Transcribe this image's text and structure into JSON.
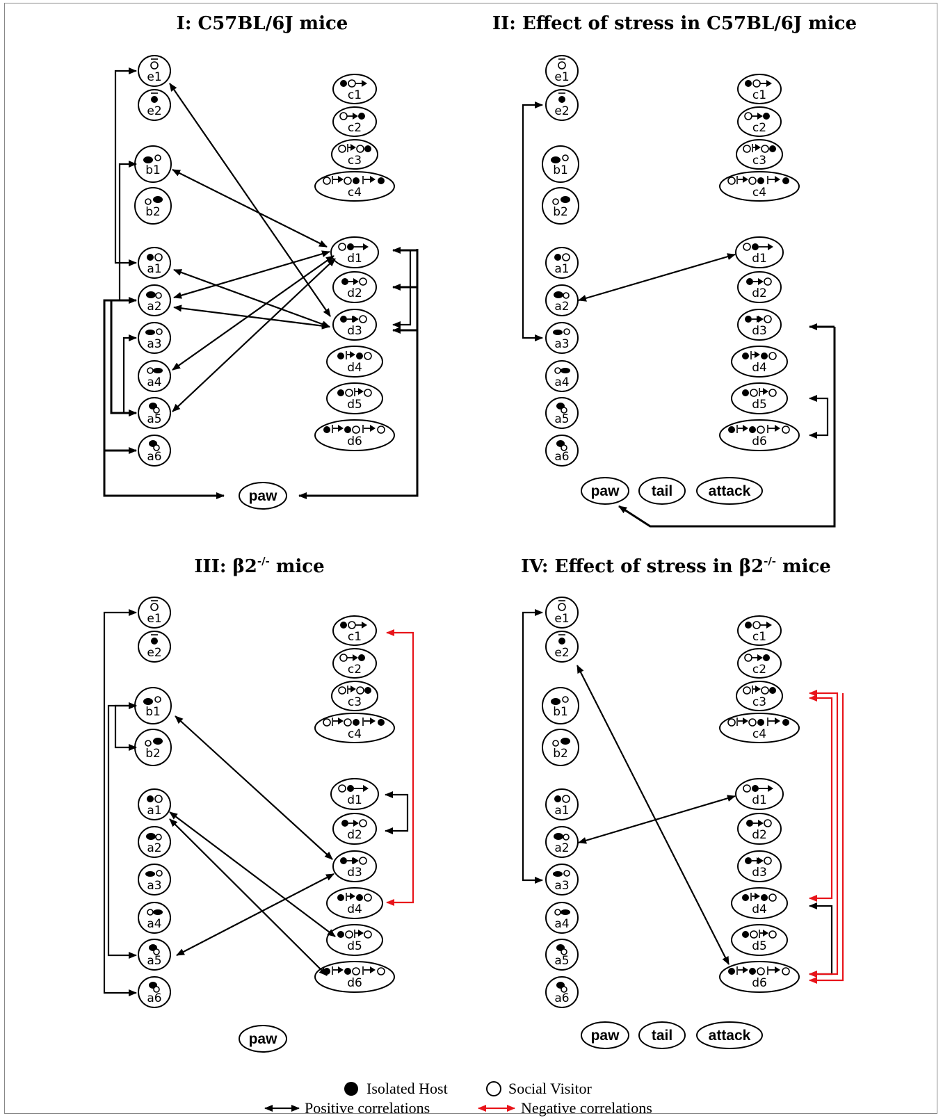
{
  "colors": {
    "positive": "#000000",
    "negative": "#e8141a",
    "line": "#000000",
    "background": "#ffffff"
  },
  "panels": [
    {
      "title_main": "I: C57BL/6J mice",
      "title_sup": "",
      "title_end": ""
    },
    {
      "title_main": "II: Effect of stress in C57BL/6J mice",
      "title_sup": "",
      "title_end": ""
    },
    {
      "title_main": "III: β2",
      "title_sup": "-/-",
      "title_end": " mice"
    },
    {
      "title_main": "IV: Effect of stress in β2",
      "title_sup": "-/-",
      "title_end": " mice"
    }
  ],
  "nodes": {
    "e1": "e1",
    "e2": "e2",
    "b1": "b1",
    "b2": "b2",
    "a1": "a1",
    "a2": "a2",
    "a3": "a3",
    "a4": "a4",
    "a5": "a5",
    "a6": "a6",
    "c1": "c1",
    "c2": "c2",
    "c3": "c3",
    "c4": "c4",
    "d1": "d1",
    "d2": "d2",
    "d3": "d3",
    "d4": "d4",
    "d5": "d5",
    "d6": "d6",
    "paw": "paw",
    "tail": "tail",
    "attack": "attack"
  },
  "legend": {
    "host": "Isolated Host",
    "visitor": "Social Visitor",
    "positive": "Positive correlations",
    "negative": "Negative correlations"
  },
  "icons": {
    "host": "filled-circle-icon",
    "visitor": "open-circle-icon",
    "arrow": "double-headed-arrow-icon"
  }
}
